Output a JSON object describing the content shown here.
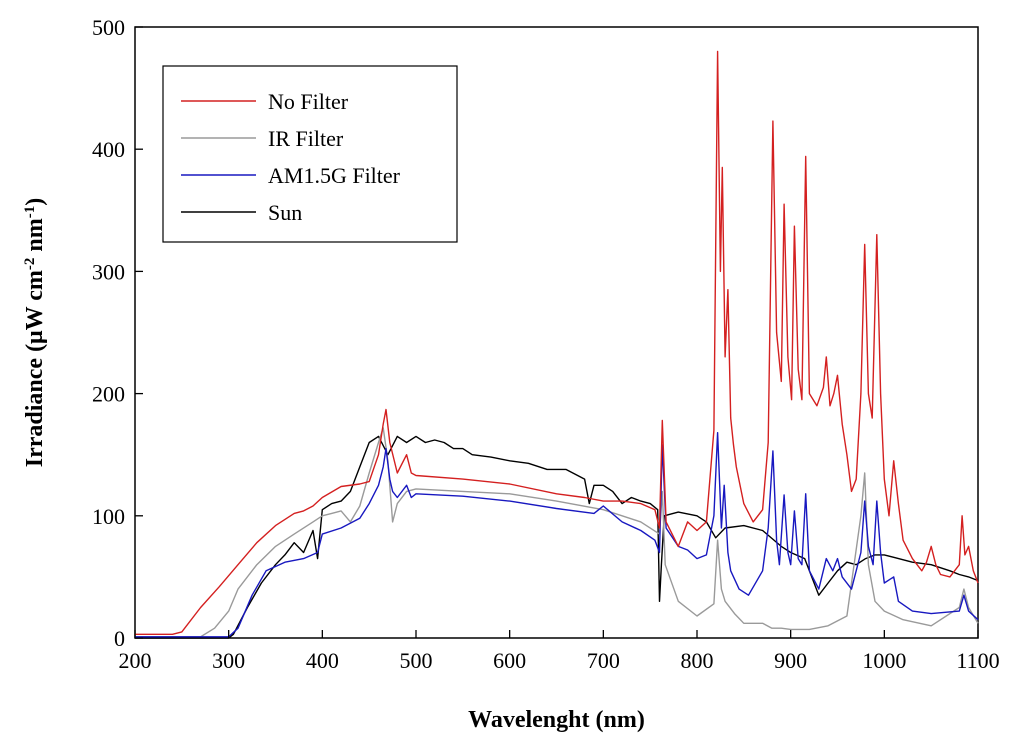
{
  "chart_data": {
    "type": "line",
    "title": "",
    "xlabel": "Wavelenght (nm)",
    "ylabel_parts": [
      "Irradiance (",
      "μ",
      "W cm",
      "-2",
      " nm",
      "-1",
      ")"
    ],
    "xlim": [
      200,
      1100
    ],
    "ylim": [
      0,
      500
    ],
    "x_ticks": [
      200,
      300,
      400,
      500,
      600,
      700,
      800,
      900,
      1000,
      1100
    ],
    "y_ticks": [
      0,
      100,
      200,
      300,
      400,
      500
    ],
    "grid": false,
    "legend_position": "top-left",
    "series": [
      {
        "name": "No Filter",
        "color": "#d42020",
        "points": [
          [
            200,
            3
          ],
          [
            240,
            3
          ],
          [
            250,
            5
          ],
          [
            270,
            25
          ],
          [
            290,
            42
          ],
          [
            310,
            60
          ],
          [
            330,
            78
          ],
          [
            350,
            92
          ],
          [
            370,
            102
          ],
          [
            380,
            104
          ],
          [
            390,
            108
          ],
          [
            400,
            115
          ],
          [
            420,
            124
          ],
          [
            440,
            126
          ],
          [
            450,
            128
          ],
          [
            460,
            150
          ],
          [
            465,
            175
          ],
          [
            468,
            187
          ],
          [
            472,
            160
          ],
          [
            480,
            135
          ],
          [
            490,
            150
          ],
          [
            495,
            135
          ],
          [
            500,
            133
          ],
          [
            550,
            130
          ],
          [
            600,
            126
          ],
          [
            650,
            118
          ],
          [
            680,
            115
          ],
          [
            700,
            112
          ],
          [
            720,
            112
          ],
          [
            740,
            110
          ],
          [
            755,
            105
          ],
          [
            760,
            90
          ],
          [
            763,
            178
          ],
          [
            767,
            95
          ],
          [
            780,
            75
          ],
          [
            790,
            95
          ],
          [
            800,
            88
          ],
          [
            810,
            95
          ],
          [
            818,
            170
          ],
          [
            822,
            480
          ],
          [
            825,
            300
          ],
          [
            827,
            385
          ],
          [
            830,
            230
          ],
          [
            833,
            285
          ],
          [
            836,
            180
          ],
          [
            839,
            158
          ],
          [
            842,
            140
          ],
          [
            850,
            110
          ],
          [
            860,
            95
          ],
          [
            870,
            105
          ],
          [
            876,
            160
          ],
          [
            881,
            423
          ],
          [
            885,
            250
          ],
          [
            890,
            210
          ],
          [
            893,
            355
          ],
          [
            897,
            230
          ],
          [
            901,
            195
          ],
          [
            904,
            337
          ],
          [
            908,
            220
          ],
          [
            912,
            195
          ],
          [
            916,
            394
          ],
          [
            920,
            200
          ],
          [
            928,
            190
          ],
          [
            935,
            205
          ],
          [
            938,
            230
          ],
          [
            942,
            190
          ],
          [
            946,
            200
          ],
          [
            950,
            215
          ],
          [
            955,
            175
          ],
          [
            960,
            150
          ],
          [
            965,
            120
          ],
          [
            970,
            130
          ],
          [
            975,
            200
          ],
          [
            979,
            322
          ],
          [
            983,
            200
          ],
          [
            987,
            180
          ],
          [
            992,
            330
          ],
          [
            996,
            200
          ],
          [
            1000,
            130
          ],
          [
            1005,
            100
          ],
          [
            1010,
            145
          ],
          [
            1015,
            110
          ],
          [
            1020,
            80
          ],
          [
            1030,
            65
          ],
          [
            1040,
            55
          ],
          [
            1045,
            62
          ],
          [
            1050,
            75
          ],
          [
            1055,
            60
          ],
          [
            1060,
            52
          ],
          [
            1070,
            50
          ],
          [
            1080,
            60
          ],
          [
            1083,
            100
          ],
          [
            1086,
            68
          ],
          [
            1090,
            75
          ],
          [
            1095,
            55
          ],
          [
            1100,
            45
          ]
        ]
      },
      {
        "name": "IR Filter",
        "color": "#9a9a9a",
        "points": [
          [
            200,
            1
          ],
          [
            270,
            1
          ],
          [
            285,
            8
          ],
          [
            300,
            22
          ],
          [
            310,
            40
          ],
          [
            330,
            60
          ],
          [
            350,
            75
          ],
          [
            370,
            85
          ],
          [
            390,
            95
          ],
          [
            400,
            100
          ],
          [
            410,
            102
          ],
          [
            420,
            104
          ],
          [
            430,
            95
          ],
          [
            440,
            108
          ],
          [
            450,
            135
          ],
          [
            460,
            160
          ],
          [
            465,
            172
          ],
          [
            470,
            145
          ],
          [
            475,
            95
          ],
          [
            480,
            110
          ],
          [
            490,
            120
          ],
          [
            500,
            122
          ],
          [
            550,
            120
          ],
          [
            600,
            118
          ],
          [
            650,
            112
          ],
          [
            700,
            105
          ],
          [
            720,
            100
          ],
          [
            740,
            95
          ],
          [
            760,
            85
          ],
          [
            763,
            120
          ],
          [
            766,
            60
          ],
          [
            780,
            30
          ],
          [
            800,
            18
          ],
          [
            818,
            28
          ],
          [
            822,
            80
          ],
          [
            826,
            40
          ],
          [
            830,
            30
          ],
          [
            840,
            20
          ],
          [
            850,
            12
          ],
          [
            870,
            12
          ],
          [
            880,
            8
          ],
          [
            890,
            8
          ],
          [
            900,
            7
          ],
          [
            920,
            7
          ],
          [
            940,
            10
          ],
          [
            960,
            18
          ],
          [
            975,
            100
          ],
          [
            979,
            135
          ],
          [
            983,
            60
          ],
          [
            990,
            30
          ],
          [
            1000,
            22
          ],
          [
            1020,
            15
          ],
          [
            1050,
            10
          ],
          [
            1080,
            25
          ],
          [
            1085,
            40
          ],
          [
            1090,
            25
          ],
          [
            1100,
            12
          ]
        ]
      },
      {
        "name": "AM1.5G Filter",
        "color": "#1818c0",
        "points": [
          [
            200,
            1
          ],
          [
            300,
            1
          ],
          [
            310,
            8
          ],
          [
            325,
            35
          ],
          [
            340,
            55
          ],
          [
            360,
            62
          ],
          [
            380,
            65
          ],
          [
            395,
            70
          ],
          [
            400,
            85
          ],
          [
            420,
            90
          ],
          [
            440,
            98
          ],
          [
            450,
            110
          ],
          [
            460,
            125
          ],
          [
            465,
            140
          ],
          [
            468,
            155
          ],
          [
            472,
            130
          ],
          [
            475,
            120
          ],
          [
            480,
            115
          ],
          [
            490,
            125
          ],
          [
            495,
            115
          ],
          [
            500,
            118
          ],
          [
            550,
            116
          ],
          [
            600,
            112
          ],
          [
            650,
            106
          ],
          [
            690,
            102
          ],
          [
            700,
            108
          ],
          [
            720,
            95
          ],
          [
            740,
            88
          ],
          [
            755,
            80
          ],
          [
            760,
            70
          ],
          [
            763,
            158
          ],
          [
            767,
            90
          ],
          [
            780,
            75
          ],
          [
            790,
            72
          ],
          [
            800,
            65
          ],
          [
            810,
            68
          ],
          [
            818,
            100
          ],
          [
            822,
            168
          ],
          [
            826,
            90
          ],
          [
            829,
            125
          ],
          [
            833,
            70
          ],
          [
            836,
            55
          ],
          [
            845,
            40
          ],
          [
            855,
            35
          ],
          [
            870,
            55
          ],
          [
            876,
            90
          ],
          [
            881,
            153
          ],
          [
            885,
            80
          ],
          [
            888,
            60
          ],
          [
            893,
            117
          ],
          [
            897,
            70
          ],
          [
            900,
            60
          ],
          [
            904,
            104
          ],
          [
            908,
            65
          ],
          [
            912,
            60
          ],
          [
            916,
            118
          ],
          [
            920,
            55
          ],
          [
            930,
            40
          ],
          [
            938,
            65
          ],
          [
            945,
            55
          ],
          [
            950,
            65
          ],
          [
            955,
            50
          ],
          [
            965,
            40
          ],
          [
            975,
            70
          ],
          [
            979,
            112
          ],
          [
            983,
            75
          ],
          [
            988,
            60
          ],
          [
            992,
            112
          ],
          [
            996,
            70
          ],
          [
            1000,
            45
          ],
          [
            1010,
            50
          ],
          [
            1015,
            30
          ],
          [
            1030,
            22
          ],
          [
            1050,
            20
          ],
          [
            1080,
            22
          ],
          [
            1085,
            35
          ],
          [
            1090,
            22
          ],
          [
            1100,
            15
          ]
        ]
      },
      {
        "name": "Sun",
        "color": "#000000",
        "points": [
          [
            200,
            0
          ],
          [
            300,
            0
          ],
          [
            305,
            3
          ],
          [
            320,
            25
          ],
          [
            335,
            45
          ],
          [
            350,
            60
          ],
          [
            360,
            68
          ],
          [
            370,
            78
          ],
          [
            380,
            70
          ],
          [
            390,
            88
          ],
          [
            395,
            65
          ],
          [
            400,
            105
          ],
          [
            410,
            110
          ],
          [
            420,
            112
          ],
          [
            430,
            120
          ],
          [
            440,
            140
          ],
          [
            450,
            160
          ],
          [
            460,
            165
          ],
          [
            470,
            150
          ],
          [
            480,
            165
          ],
          [
            490,
            160
          ],
          [
            500,
            165
          ],
          [
            510,
            160
          ],
          [
            520,
            162
          ],
          [
            530,
            160
          ],
          [
            540,
            155
          ],
          [
            550,
            155
          ],
          [
            560,
            150
          ],
          [
            580,
            148
          ],
          [
            600,
            145
          ],
          [
            620,
            143
          ],
          [
            640,
            138
          ],
          [
            660,
            138
          ],
          [
            680,
            130
          ],
          [
            685,
            110
          ],
          [
            690,
            125
          ],
          [
            700,
            125
          ],
          [
            710,
            120
          ],
          [
            720,
            110
          ],
          [
            730,
            115
          ],
          [
            740,
            112
          ],
          [
            750,
            110
          ],
          [
            758,
            105
          ],
          [
            760,
            30
          ],
          [
            762,
            60
          ],
          [
            765,
            100
          ],
          [
            780,
            103
          ],
          [
            800,
            100
          ],
          [
            810,
            95
          ],
          [
            820,
            82
          ],
          [
            830,
            90
          ],
          [
            850,
            92
          ],
          [
            870,
            88
          ],
          [
            890,
            75
          ],
          [
            900,
            70
          ],
          [
            915,
            65
          ],
          [
            930,
            35
          ],
          [
            940,
            45
          ],
          [
            950,
            55
          ],
          [
            960,
            62
          ],
          [
            970,
            60
          ],
          [
            980,
            65
          ],
          [
            990,
            68
          ],
          [
            1000,
            68
          ],
          [
            1010,
            66
          ],
          [
            1030,
            62
          ],
          [
            1050,
            60
          ],
          [
            1070,
            55
          ],
          [
            1080,
            52
          ],
          [
            1090,
            50
          ],
          [
            1100,
            47
          ]
        ]
      }
    ]
  }
}
